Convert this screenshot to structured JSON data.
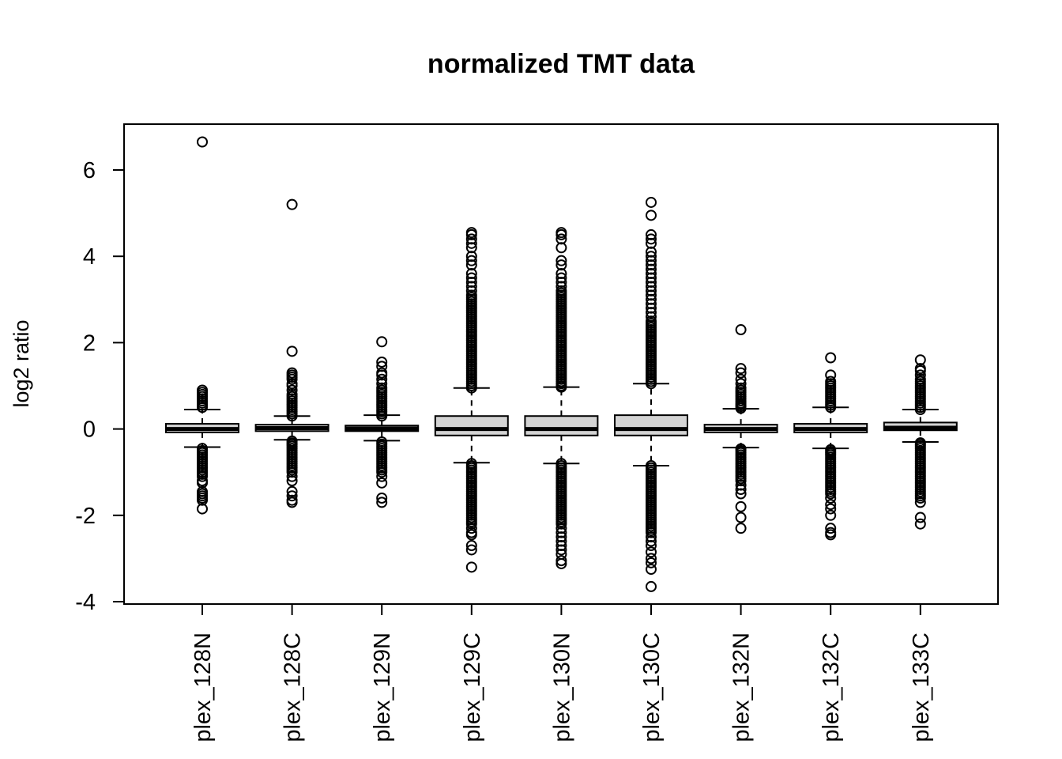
{
  "chart_data": {
    "type": "boxplot",
    "title": "normalized TMT data",
    "ylabel": "log2 ratio",
    "xlabel": "",
    "ylim": [
      -4,
      7
    ],
    "yticks": [
      -4,
      -2,
      0,
      2,
      4,
      6
    ],
    "grid": false,
    "legend": "none",
    "box_fill": "#d3d3d3",
    "categories": [
      "plex_128N",
      "plex_128C",
      "plex_129N",
      "plex_129C",
      "plex_130N",
      "plex_130C",
      "plex_132N",
      "plex_132C",
      "plex_133C"
    ],
    "boxes": [
      {
        "q1": -0.08,
        "median": 0.0,
        "q3": 0.12,
        "whisker_low": -0.42,
        "whisker_high": 0.45,
        "outliers_high": [
          0.5,
          0.55,
          0.6,
          0.65,
          0.7,
          0.75,
          0.8,
          0.85,
          0.9,
          6.65
        ],
        "outliers_low": [
          -0.45,
          -0.5,
          -0.55,
          -0.6,
          -0.65,
          -0.7,
          -0.75,
          -0.8,
          -0.85,
          -0.9,
          -0.95,
          -1.0,
          -1.05,
          -1.1,
          -1.2,
          -1.25,
          -1.45,
          -1.5,
          -1.55,
          -1.6,
          -1.65,
          -1.85
        ]
      },
      {
        "q1": -0.05,
        "median": 0.02,
        "q3": 0.1,
        "whisker_low": -0.25,
        "whisker_high": 0.3,
        "outliers_high": [
          0.3,
          0.35,
          0.4,
          0.45,
          0.5,
          0.55,
          0.6,
          0.65,
          0.7,
          0.75,
          0.8,
          0.9,
          1.0,
          1.05,
          1.15,
          1.2,
          1.25,
          1.3,
          1.8,
          5.2
        ],
        "outliers_low": [
          -0.28,
          -0.32,
          -0.36,
          -0.4,
          -0.45,
          -0.5,
          -0.55,
          -0.6,
          -0.65,
          -0.7,
          -0.75,
          -0.8,
          -0.85,
          -0.9,
          -0.95,
          -1.0,
          -1.1,
          -1.2,
          -1.45,
          -1.55,
          -1.65,
          -1.7
        ]
      },
      {
        "q1": -0.05,
        "median": 0.01,
        "q3": 0.08,
        "whisker_low": -0.27,
        "whisker_high": 0.32,
        "outliers_high": [
          0.3,
          0.35,
          0.4,
          0.45,
          0.5,
          0.55,
          0.6,
          0.65,
          0.7,
          0.75,
          0.8,
          0.85,
          0.9,
          0.95,
          1.05,
          1.15,
          1.25,
          1.3,
          1.45,
          1.55,
          2.02
        ],
        "outliers_low": [
          -0.3,
          -0.35,
          -0.4,
          -0.45,
          -0.5,
          -0.55,
          -0.6,
          -0.65,
          -0.7,
          -0.75,
          -0.8,
          -0.85,
          -0.9,
          -0.95,
          -1.0,
          -1.1,
          -1.25,
          -1.6,
          -1.7
        ]
      },
      {
        "q1": -0.15,
        "median": 0.0,
        "q3": 0.3,
        "whisker_low": -0.78,
        "whisker_high": 0.95,
        "outliers_high": [
          0.95,
          1.0,
          1.05,
          1.1,
          1.15,
          1.2,
          1.25,
          1.3,
          1.35,
          1.4,
          1.45,
          1.5,
          1.55,
          1.6,
          1.65,
          1.7,
          1.75,
          1.8,
          1.85,
          1.9,
          1.95,
          2.0,
          2.05,
          2.1,
          2.15,
          2.2,
          2.25,
          2.3,
          2.35,
          2.4,
          2.45,
          2.5,
          2.55,
          2.6,
          2.65,
          2.7,
          2.75,
          2.8,
          2.85,
          2.9,
          2.95,
          3.0,
          3.05,
          3.1,
          3.2,
          3.3,
          3.4,
          3.5,
          3.6,
          3.8,
          3.9,
          4.0,
          4.2,
          4.3,
          4.4,
          4.5,
          4.55
        ],
        "outliers_low": [
          -0.8,
          -0.85,
          -0.9,
          -0.95,
          -1.0,
          -1.05,
          -1.1,
          -1.15,
          -1.2,
          -1.25,
          -1.3,
          -1.35,
          -1.4,
          -1.45,
          -1.5,
          -1.55,
          -1.6,
          -1.65,
          -1.7,
          -1.75,
          -1.8,
          -1.85,
          -1.9,
          -1.95,
          -2.0,
          -2.05,
          -2.1,
          -2.15,
          -2.2,
          -2.3,
          -2.4,
          -2.45,
          -2.7,
          -2.8,
          -3.2
        ]
      },
      {
        "q1": -0.15,
        "median": 0.0,
        "q3": 0.3,
        "whisker_low": -0.8,
        "whisker_high": 0.97,
        "outliers_high": [
          0.97,
          1.0,
          1.05,
          1.1,
          1.15,
          1.2,
          1.25,
          1.3,
          1.35,
          1.4,
          1.45,
          1.5,
          1.55,
          1.6,
          1.65,
          1.7,
          1.75,
          1.8,
          1.85,
          1.9,
          1.95,
          2.0,
          2.05,
          2.1,
          2.15,
          2.2,
          2.25,
          2.3,
          2.35,
          2.4,
          2.45,
          2.5,
          2.55,
          2.6,
          2.65,
          2.7,
          2.75,
          2.8,
          2.85,
          2.9,
          2.95,
          3.0,
          3.05,
          3.1,
          3.15,
          3.2,
          3.3,
          3.4,
          3.5,
          3.6,
          3.8,
          3.9,
          4.2,
          4.4,
          4.5,
          4.55
        ],
        "outliers_low": [
          -0.8,
          -0.85,
          -0.9,
          -0.95,
          -1.0,
          -1.05,
          -1.1,
          -1.15,
          -1.2,
          -1.25,
          -1.3,
          -1.35,
          -1.4,
          -1.45,
          -1.5,
          -1.55,
          -1.6,
          -1.65,
          -1.7,
          -1.75,
          -1.8,
          -1.85,
          -1.9,
          -1.95,
          -2.0,
          -2.05,
          -2.1,
          -2.15,
          -2.2,
          -2.3,
          -2.4,
          -2.5,
          -2.6,
          -2.7,
          -2.8,
          -2.9,
          -3.05,
          -3.12
        ]
      },
      {
        "q1": -0.15,
        "median": 0.0,
        "q3": 0.32,
        "whisker_low": -0.85,
        "whisker_high": 1.05,
        "outliers_high": [
          1.05,
          1.1,
          1.15,
          1.2,
          1.25,
          1.3,
          1.35,
          1.4,
          1.45,
          1.5,
          1.55,
          1.6,
          1.65,
          1.7,
          1.75,
          1.8,
          1.85,
          1.9,
          1.95,
          2.0,
          2.05,
          2.1,
          2.15,
          2.2,
          2.25,
          2.3,
          2.35,
          2.4,
          2.45,
          2.5,
          2.6,
          2.7,
          2.8,
          2.9,
          3.0,
          3.1,
          3.2,
          3.3,
          3.4,
          3.5,
          3.6,
          3.7,
          3.8,
          3.9,
          4.0,
          4.1,
          4.3,
          4.4,
          4.5,
          4.95,
          5.25
        ],
        "outliers_low": [
          -0.85,
          -0.9,
          -0.95,
          -1.0,
          -1.05,
          -1.1,
          -1.15,
          -1.2,
          -1.25,
          -1.3,
          -1.35,
          -1.4,
          -1.45,
          -1.5,
          -1.55,
          -1.6,
          -1.65,
          -1.7,
          -1.75,
          -1.8,
          -1.85,
          -1.9,
          -1.95,
          -2.0,
          -2.05,
          -2.1,
          -2.15,
          -2.2,
          -2.25,
          -2.3,
          -2.35,
          -2.4,
          -2.5,
          -2.6,
          -2.7,
          -2.85,
          -3.0,
          -3.1,
          -3.25,
          -3.65
        ]
      },
      {
        "q1": -0.08,
        "median": 0.0,
        "q3": 0.1,
        "whisker_low": -0.43,
        "whisker_high": 0.47,
        "outliers_high": [
          0.48,
          0.52,
          0.56,
          0.6,
          0.65,
          0.7,
          0.75,
          0.8,
          0.85,
          0.9,
          0.95,
          1.05,
          1.15,
          1.3,
          1.4,
          2.3
        ],
        "outliers_low": [
          -0.46,
          -0.5,
          -0.55,
          -0.6,
          -0.65,
          -0.7,
          -0.75,
          -0.8,
          -0.85,
          -0.9,
          -0.95,
          -1.0,
          -1.05,
          -1.1,
          -1.15,
          -1.2,
          -1.3,
          -1.4,
          -1.5,
          -1.8,
          -2.05,
          -2.3
        ]
      },
      {
        "q1": -0.08,
        "median": 0.0,
        "q3": 0.12,
        "whisker_low": -0.45,
        "whisker_high": 0.5,
        "outliers_high": [
          0.5,
          0.55,
          0.6,
          0.65,
          0.7,
          0.75,
          0.8,
          0.85,
          0.9,
          0.95,
          1.0,
          1.05,
          1.1,
          1.25,
          1.65
        ],
        "outliers_low": [
          -0.48,
          -0.52,
          -0.56,
          -0.6,
          -0.65,
          -0.7,
          -0.75,
          -0.8,
          -0.85,
          -0.9,
          -0.95,
          -1.0,
          -1.05,
          -1.1,
          -1.15,
          -1.2,
          -1.25,
          -1.3,
          -1.35,
          -1.4,
          -1.45,
          -1.5,
          -1.6,
          -1.75,
          -1.85,
          -2.0,
          -2.3,
          -2.4,
          -2.45
        ]
      },
      {
        "q1": -0.03,
        "median": 0.03,
        "q3": 0.15,
        "whisker_low": -0.3,
        "whisker_high": 0.45,
        "outliers_high": [
          0.45,
          0.5,
          0.55,
          0.6,
          0.65,
          0.7,
          0.75,
          0.8,
          0.85,
          0.9,
          0.95,
          1.0,
          1.05,
          1.1,
          1.15,
          1.25,
          1.35,
          1.4,
          1.6
        ],
        "outliers_low": [
          -0.32,
          -0.36,
          -0.4,
          -0.45,
          -0.5,
          -0.55,
          -0.6,
          -0.65,
          -0.7,
          -0.75,
          -0.8,
          -0.85,
          -0.9,
          -0.95,
          -1.0,
          -1.05,
          -1.1,
          -1.15,
          -1.2,
          -1.25,
          -1.3,
          -1.35,
          -1.4,
          -1.45,
          -1.5,
          -1.55,
          -1.6,
          -1.7,
          -2.05,
          -2.2
        ]
      }
    ]
  }
}
